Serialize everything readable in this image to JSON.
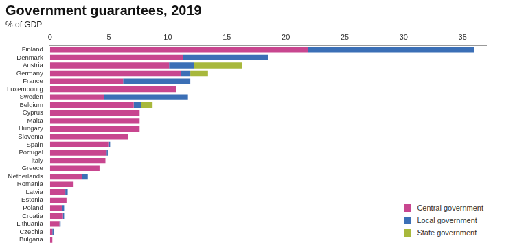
{
  "chart_data": {
    "type": "bar",
    "orientation": "horizontal",
    "stacked": true,
    "title": "Government guarantees, 2019",
    "subtitle": "% of GDP",
    "categories": [
      "Finland",
      "Denmark",
      "Austria",
      "Germany",
      "France",
      "Luxembourg",
      "Sweden",
      "Belgium",
      "Cyprus",
      "Malta",
      "Hungary",
      "Slovenia",
      "Spain",
      "Portugal",
      "Italy",
      "Greece",
      "Netherlands",
      "Romania",
      "Latvia",
      "Estonia",
      "Poland",
      "Croatia",
      "Lithuania",
      "Czechia",
      "Bulgaria"
    ],
    "series": [
      {
        "name": "Central government",
        "color": "#c8468f",
        "values": [
          21.9,
          11.3,
          10.1,
          11.1,
          6.2,
          10.7,
          4.6,
          7.1,
          7.6,
          7.6,
          7.6,
          6.6,
          5.0,
          4.8,
          4.7,
          4.2,
          2.7,
          2.0,
          1.3,
          1.4,
          1.0,
          1.1,
          0.8,
          0.2,
          0.2
        ]
      },
      {
        "name": "Local government",
        "color": "#3b6fb6",
        "values": [
          14.1,
          7.2,
          2.1,
          0.8,
          5.7,
          0,
          7.1,
          0.6,
          0,
          0,
          0,
          0,
          0.1,
          0.1,
          0,
          0,
          0.5,
          0,
          0.2,
          0,
          0.2,
          0.1,
          0.1,
          0.1,
          0
        ]
      },
      {
        "name": "State government",
        "color": "#a8b83c",
        "values": [
          0,
          0,
          4.1,
          1.5,
          0,
          0,
          0,
          1.0,
          0,
          0,
          0,
          0,
          0,
          0,
          0,
          0,
          0,
          0,
          0,
          0,
          0,
          0,
          0,
          0,
          0
        ]
      }
    ],
    "xlim": [
      0,
      37
    ],
    "xticks": [
      0,
      5,
      10,
      15,
      20,
      25,
      30,
      35
    ],
    "grid": false,
    "legend": "lower right"
  }
}
